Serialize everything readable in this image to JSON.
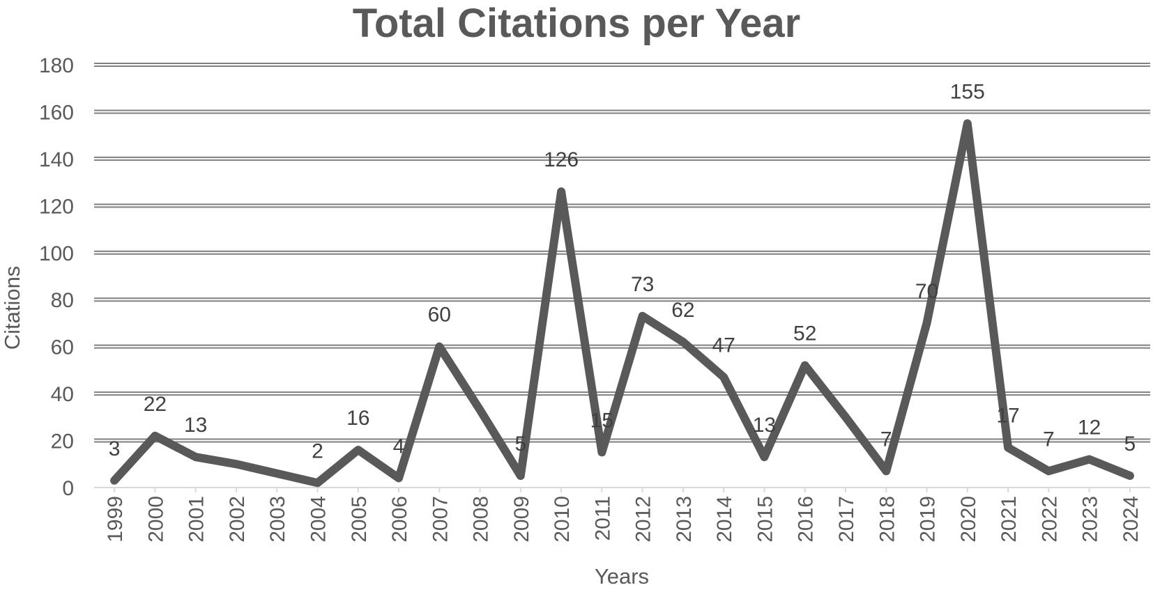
{
  "chart_data": {
    "type": "line",
    "title": "Total Citations per Year",
    "xlabel": "Years",
    "ylabel": "Citations",
    "ylim": [
      0,
      180
    ],
    "y_ticks": [
      0,
      20,
      40,
      60,
      80,
      100,
      120,
      140,
      160,
      180
    ],
    "grid": true,
    "legend": "none",
    "colors": {
      "line": "#595959",
      "grid": "#7f7f7f",
      "text": "#595959"
    },
    "categories": [
      "1999",
      "2000",
      "2001",
      "2002",
      "2003",
      "2004",
      "2005",
      "2006",
      "2007",
      "2008",
      "2009",
      "2010",
      "2011",
      "2012",
      "2013",
      "2014",
      "2015",
      "2016",
      "2017",
      "2018",
      "2019",
      "2020",
      "2021",
      "2022",
      "2023",
      "2024"
    ],
    "series": [
      {
        "values": [
          3,
          22,
          13,
          10,
          6,
          2,
          16,
          4,
          60,
          33,
          5,
          126,
          15,
          73,
          62,
          47,
          13,
          52,
          30,
          7,
          70,
          155,
          17,
          7,
          12,
          5
        ]
      }
    ],
    "data_labels": [
      "3",
      "22",
      "13",
      null,
      null,
      "2",
      "16",
      "4",
      "60",
      null,
      "5",
      "126",
      "15",
      "73",
      "62",
      "47",
      "13",
      "52",
      null,
      "7",
      "70",
      "155",
      "17",
      "7",
      "12",
      "5"
    ]
  }
}
